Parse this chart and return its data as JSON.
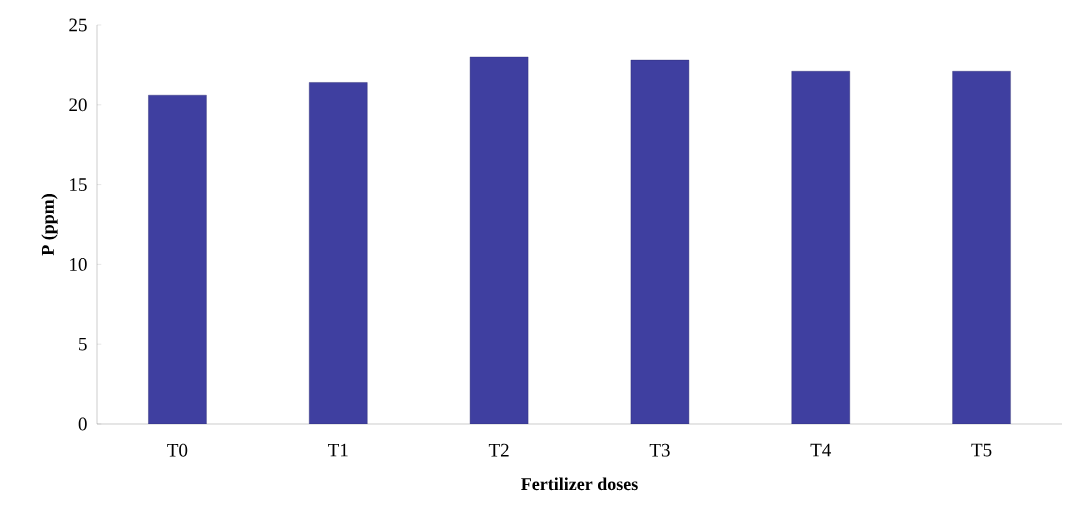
{
  "chart_data": {
    "type": "bar",
    "xlabel": "Fertilizer doses",
    "ylabel": "P (ppm)",
    "categories": [
      "T0",
      "T1",
      "T2",
      "T3",
      "T4",
      "T5"
    ],
    "values": [
      20.6,
      21.4,
      23.0,
      22.8,
      22.1,
      22.1
    ],
    "color": "#3f3fa0",
    "ylim": [
      0,
      25
    ],
    "yticks": [
      0,
      5,
      10,
      15,
      20,
      25
    ],
    "grid": false
  }
}
